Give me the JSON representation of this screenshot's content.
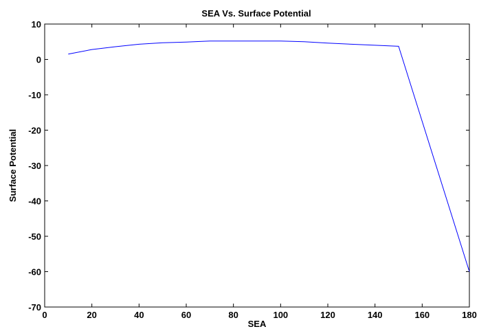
{
  "chart_data": {
    "type": "line",
    "title": "SEA Vs. Surface Potential",
    "xlabel": "SEA",
    "ylabel": "Surface Potential",
    "xlim": [
      0,
      180
    ],
    "ylim": [
      -70,
      10
    ],
    "xticks": [
      0,
      20,
      40,
      60,
      80,
      100,
      120,
      140,
      160,
      180
    ],
    "yticks": [
      10,
      0,
      -10,
      -20,
      -30,
      -40,
      -50,
      -60,
      -70
    ],
    "grid": false,
    "series": [
      {
        "color": "#0000ff",
        "x": [
          10,
          20,
          30,
          40,
          50,
          60,
          70,
          80,
          90,
          100,
          110,
          120,
          130,
          140,
          150,
          180
        ],
        "y": [
          1.5,
          2.8,
          3.6,
          4.3,
          4.7,
          4.9,
          5.2,
          5.2,
          5.2,
          5.2,
          5.0,
          4.6,
          4.3,
          4.0,
          3.7,
          -60
        ]
      }
    ]
  }
}
